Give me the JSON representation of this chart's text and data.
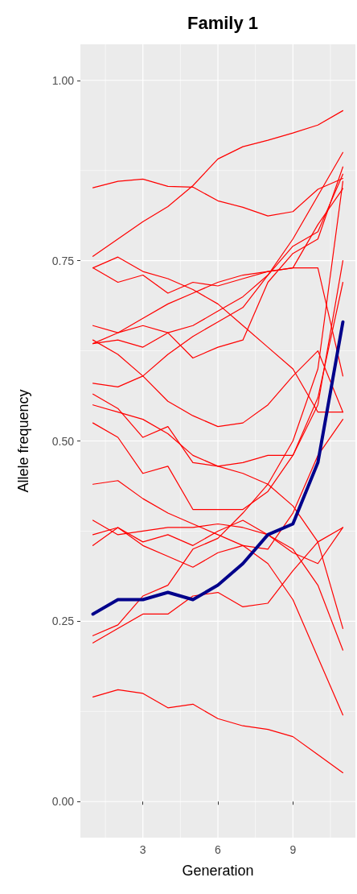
{
  "chart_data": {
    "type": "line",
    "title": "Family 1",
    "xlabel": "Generation",
    "ylabel": "Allele frequency",
    "x": [
      1,
      2,
      3,
      4,
      5,
      6,
      7,
      8,
      9,
      10,
      11
    ],
    "xlim": [
      0.5,
      11.5
    ],
    "xticks": [
      3,
      6,
      9
    ],
    "ylim": [
      -0.05,
      1.05
    ],
    "yticks": [
      {
        "value": 0,
        "label": "0.00"
      },
      {
        "value": 0.25,
        "label": "0.25"
      },
      {
        "value": 0.5,
        "label": "0.50"
      },
      {
        "value": 0.75,
        "label": "0.75"
      },
      {
        "value": 1,
        "label": "1.00"
      }
    ],
    "grid": true,
    "marker": "none",
    "line_style": "solid",
    "series": [
      {
        "color": "#ff0000",
        "values": [
          0.851,
          0.86,
          0.863,
          0.853,
          0.852,
          0.833,
          0.824,
          0.812,
          0.818,
          0.849,
          0.864
        ]
      },
      {
        "color": "#ff0000",
        "values": [
          0.756,
          0.78,
          0.804,
          0.825,
          0.854,
          0.891,
          0.908,
          0.917,
          0.927,
          0.938,
          0.958
        ]
      },
      {
        "color": "#ff0000",
        "values": [
          0.74,
          0.755,
          0.735,
          0.725,
          0.71,
          0.69,
          0.66,
          0.63,
          0.6,
          0.54,
          0.54
        ]
      },
      {
        "color": "#ff0000",
        "values": [
          0.74,
          0.72,
          0.73,
          0.705,
          0.72,
          0.715,
          0.725,
          0.735,
          0.74,
          0.74,
          0.59
        ]
      },
      {
        "color": "#ff0000",
        "values": [
          0.66,
          0.65,
          0.66,
          0.65,
          0.615,
          0.63,
          0.64,
          0.72,
          0.76,
          0.78,
          0.88
        ]
      },
      {
        "color": "#ff0000",
        "values": [
          0.635,
          0.65,
          0.67,
          0.69,
          0.705,
          0.72,
          0.73,
          0.735,
          0.74,
          0.8,
          0.85
        ]
      },
      {
        "color": "#ff0000",
        "values": [
          0.635,
          0.64,
          0.63,
          0.65,
          0.66,
          0.68,
          0.7,
          0.73,
          0.77,
          0.79,
          0.87
        ]
      },
      {
        "color": "#ff0000",
        "values": [
          0.58,
          0.575,
          0.59,
          0.62,
          0.645,
          0.665,
          0.685,
          0.73,
          0.78,
          0.84,
          0.9
        ]
      },
      {
        "color": "#ff0000",
        "values": [
          0.64,
          0.62,
          0.59,
          0.555,
          0.535,
          0.52,
          0.525,
          0.55,
          0.59,
          0.625,
          0.54
        ]
      },
      {
        "color": "#ff0000",
        "values": [
          0.565,
          0.545,
          0.505,
          0.52,
          0.47,
          0.465,
          0.47,
          0.48,
          0.48,
          0.55,
          0.75
        ]
      },
      {
        "color": "#ff0000",
        "values": [
          0.55,
          0.54,
          0.53,
          0.51,
          0.48,
          0.465,
          0.455,
          0.44,
          0.41,
          0.36,
          0.24
        ]
      },
      {
        "color": "#ff0000",
        "values": [
          0.525,
          0.505,
          0.455,
          0.465,
          0.405,
          0.405,
          0.405,
          0.43,
          0.48,
          0.56,
          0.72
        ]
      },
      {
        "color": "#ff0000",
        "values": [
          0.44,
          0.445,
          0.42,
          0.4,
          0.385,
          0.37,
          0.355,
          0.33,
          0.28,
          0.2,
          0.12
        ]
      },
      {
        "color": "#ff0000",
        "values": [
          0.39,
          0.37,
          0.375,
          0.38,
          0.38,
          0.385,
          0.38,
          0.37,
          0.35,
          0.3,
          0.21
        ]
      },
      {
        "color": "#ff0000",
        "values": [
          0.37,
          0.38,
          0.36,
          0.37,
          0.355,
          0.375,
          0.39,
          0.37,
          0.345,
          0.33,
          0.38
        ]
      },
      {
        "color": "#ff0000",
        "values": [
          0.355,
          0.38,
          0.355,
          0.34,
          0.325,
          0.345,
          0.355,
          0.35,
          0.4,
          0.48,
          0.53
        ]
      },
      {
        "color": "#ff0000",
        "values": [
          0.23,
          0.245,
          0.285,
          0.3,
          0.35,
          0.365,
          0.4,
          0.44,
          0.5,
          0.6,
          0.86
        ]
      },
      {
        "color": "#ff0000",
        "values": [
          0.22,
          0.24,
          0.26,
          0.26,
          0.285,
          0.29,
          0.27,
          0.275,
          0.32,
          0.36,
          0.38
        ]
      },
      {
        "color": "#ff0000",
        "values": [
          0.145,
          0.155,
          0.15,
          0.13,
          0.135,
          0.115,
          0.105,
          0.1,
          0.09,
          0.065,
          0.04
        ]
      },
      {
        "color": "#00008b",
        "values": [
          0.26,
          0.28,
          0.28,
          0.29,
          0.28,
          0.3,
          0.33,
          0.37,
          0.385,
          0.47,
          0.665
        ]
      }
    ]
  }
}
